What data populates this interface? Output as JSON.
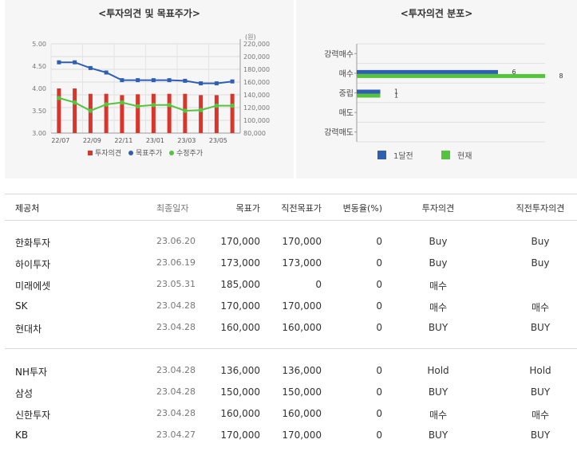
{
  "left_chart": {
    "title": "<투자의견 및 목표주가>",
    "unit_right": "(원)",
    "legend": [
      {
        "label": "투자의견",
        "color": "#d9352b",
        "shape": "square"
      },
      {
        "label": "목표주가",
        "color": "#2f5fb3",
        "shape": "circle"
      },
      {
        "label": "수정주가",
        "color": "#55c43c",
        "shape": "circle"
      }
    ]
  },
  "right_chart": {
    "title": "<투자의견 분포>",
    "legend": [
      {
        "label": "1달전",
        "color": "#2f5fb3"
      },
      {
        "label": "현재",
        "color": "#55c43c"
      }
    ]
  },
  "table": {
    "headers": {
      "provider": "제공처",
      "date": "최종일자",
      "target": "목표가",
      "prev_target": "직전목표가",
      "change": "변동율(%)",
      "opinion": "투자의견",
      "prev_opinion": "직전투자의견"
    },
    "rows": [
      {
        "provider": "한화투자",
        "date": "23.06.20",
        "target": "170,000",
        "prev_target": "170,000",
        "change": "0",
        "opinion": "Buy",
        "prev_opinion": "Buy"
      },
      {
        "provider": "하이투자",
        "date": "23.06.19",
        "target": "173,000",
        "prev_target": "173,000",
        "change": "0",
        "opinion": "Buy",
        "prev_opinion": "Buy"
      },
      {
        "provider": "미래에셋",
        "date": "23.05.31",
        "target": "185,000",
        "prev_target": "0",
        "change": "0",
        "opinion": "매수",
        "prev_opinion": ""
      },
      {
        "provider": "SK",
        "date": "23.04.28",
        "target": "170,000",
        "prev_target": "170,000",
        "change": "0",
        "opinion": "매수",
        "prev_opinion": "매수"
      },
      {
        "provider": "현대차",
        "date": "23.04.28",
        "target": "160,000",
        "prev_target": "160,000",
        "change": "0",
        "opinion": "BUY",
        "prev_opinion": "BUY"
      },
      {
        "provider": "NH투자",
        "date": "23.04.28",
        "target": "136,000",
        "prev_target": "136,000",
        "change": "0",
        "opinion": "Hold",
        "prev_opinion": "Hold"
      },
      {
        "provider": "삼성",
        "date": "23.04.28",
        "target": "150,000",
        "prev_target": "150,000",
        "change": "0",
        "opinion": "BUY",
        "prev_opinion": "BUY"
      },
      {
        "provider": "신한투자",
        "date": "23.04.28",
        "target": "160,000",
        "prev_target": "160,000",
        "change": "0",
        "opinion": "매수",
        "prev_opinion": "매수"
      },
      {
        "provider": "KB",
        "date": "23.04.27",
        "target": "170,000",
        "prev_target": "170,000",
        "change": "0",
        "opinion": "BUY",
        "prev_opinion": "BUY"
      }
    ]
  },
  "chart_data": [
    {
      "type": "bar+line",
      "title": "<투자의견 및 목표주가>",
      "x_tick_labels": [
        "22/07",
        "22/09",
        "22/11",
        "23/01",
        "23/03",
        "23/05"
      ],
      "x_count": 12,
      "y_left": {
        "ticks": [
          "5.00",
          "4.50",
          "4.00",
          "3.50",
          "3.00"
        ],
        "range": [
          3.0,
          5.0
        ]
      },
      "y_right": {
        "ticks": [
          "220,000",
          "200,000",
          "180,000",
          "160,000",
          "140,000",
          "120,000",
          "100,000",
          "80,000"
        ],
        "range": [
          80000,
          220000
        ],
        "unit": "(원)"
      },
      "grid": true,
      "legend_position": "bottom",
      "series": [
        {
          "name": "투자의견",
          "type": "bar",
          "axis": "left",
          "color": "#d9352b",
          "values": [
            4.0,
            4.0,
            3.88,
            3.88,
            3.85,
            3.87,
            3.88,
            3.88,
            3.88,
            3.85,
            3.85,
            3.88
          ]
        },
        {
          "name": "목표주가",
          "type": "line",
          "axis": "right",
          "color": "#2f5fb3",
          "values": [
            191000,
            191000,
            182000,
            175000,
            163000,
            163000,
            163000,
            163000,
            162000,
            158000,
            158000,
            161000
          ]
        },
        {
          "name": "수정주가",
          "type": "line",
          "axis": "right",
          "color": "#55c43c",
          "values": [
            135000,
            128000,
            115000,
            125000,
            128000,
            122000,
            124000,
            124000,
            115000,
            116000,
            123000,
            123000
          ]
        }
      ]
    },
    {
      "type": "bar",
      "orientation": "horizontal",
      "title": "<투자의견 분포>",
      "categories": [
        "강력매수",
        "매수",
        "중립",
        "매도",
        "강력매도"
      ],
      "x_range": [
        0,
        8
      ],
      "legend_position": "bottom",
      "series": [
        {
          "name": "1달전",
          "color": "#2f5fb3",
          "values": [
            0,
            6,
            1,
            0,
            0
          ]
        },
        {
          "name": "현재",
          "color": "#55c43c",
          "values": [
            0,
            8,
            1,
            0,
            0
          ]
        }
      ]
    }
  ]
}
